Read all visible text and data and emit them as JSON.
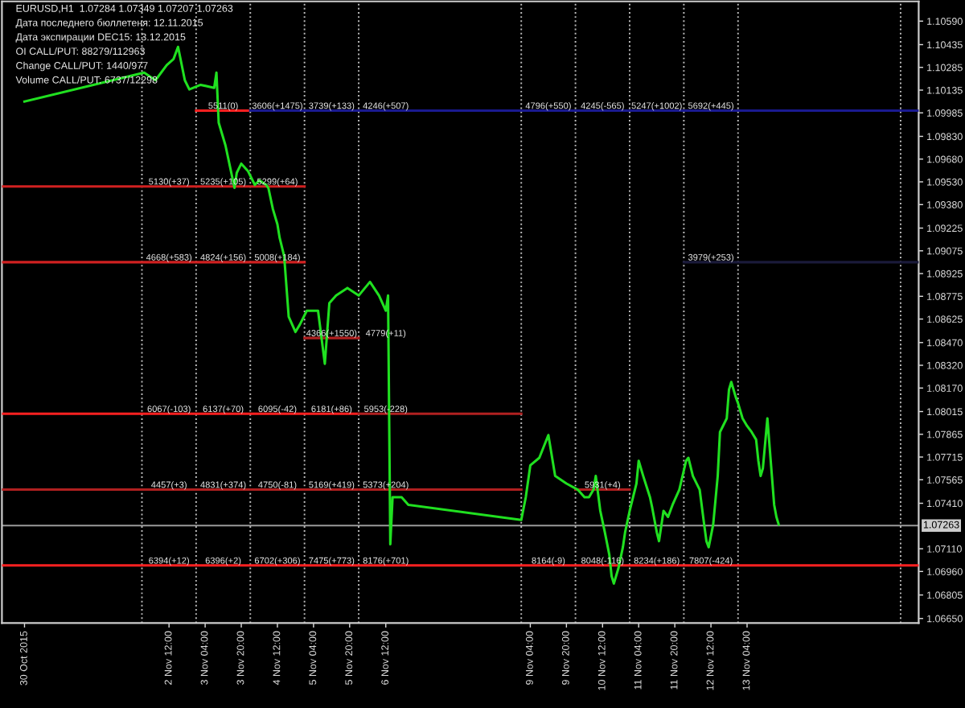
{
  "chart_data": {
    "type": "line",
    "annotations": [
      "EURUSD,H1  1.07284 1.07349 1.07207 1.07263",
      "Дата последнего бюллетеня: 12.11.2015",
      "Дата экспирации DEC15: 13.12.2015",
      "OI CALL/PUT: 88279/112963",
      "Change CALL/PUT: 1440/977",
      "Volume CALL/PUT: 6737/12298",
      {
        "text": "5511(0)",
        "x": "2015-11-03T12:00",
        "y": 1.1
      },
      {
        "text": "3606(+1475)",
        "x": "2015-11-04T12:00",
        "y": 1.1
      },
      {
        "text": "3739(+133)",
        "x": "2015-11-05T12:00",
        "y": 1.1
      },
      {
        "text": "4246(+507)",
        "x": "2015-11-06T12:00",
        "y": 1.1
      },
      {
        "text": "4796(+550)",
        "x": "2015-11-09T12:00",
        "y": 1.1
      },
      {
        "text": "4245(-565)",
        "x": "2015-11-10T12:00",
        "y": 1.1
      },
      {
        "text": "5247(+1002)",
        "x": "2015-11-11T12:00",
        "y": 1.1
      },
      {
        "text": "5692(+445)",
        "x": "2015-11-12T12:00",
        "y": 1.1
      },
      {
        "text": "5130(+37)",
        "x": "2015-11-02T12:00",
        "y": 1.095
      },
      {
        "text": "5235(+105)",
        "x": "2015-11-03T12:00",
        "y": 1.095
      },
      {
        "text": "5299(+64)",
        "x": "2015-11-04T12:00",
        "y": 1.095
      },
      {
        "text": "4668(+583)",
        "x": "2015-11-02T12:00",
        "y": 1.09
      },
      {
        "text": "4824(+156)",
        "x": "2015-11-03T12:00",
        "y": 1.09
      },
      {
        "text": "5008(+184)",
        "x": "2015-11-04T12:00",
        "y": 1.09
      },
      {
        "text": "3979(+253)",
        "x": "2015-11-12T12:00",
        "y": 1.09
      },
      {
        "text": "4366(+1550)",
        "x": "2015-11-05T12:00",
        "y": 1.085
      },
      {
        "text": "4779(+11)",
        "x": "2015-11-06T12:00",
        "y": 1.085
      },
      {
        "text": "6067(-103)",
        "x": "2015-11-02T12:00",
        "y": 1.08
      },
      {
        "text": "6137(+70)",
        "x": "2015-11-03T12:00",
        "y": 1.08
      },
      {
        "text": "6095(-42)",
        "x": "2015-11-04T12:00",
        "y": 1.08
      },
      {
        "text": "6181(+86)",
        "x": "2015-11-05T12:00",
        "y": 1.08
      },
      {
        "text": "5953(-228)",
        "x": "2015-11-06T12:00",
        "y": 1.08
      },
      {
        "text": "4457(+3)",
        "x": "2015-11-02T12:00",
        "y": 1.075
      },
      {
        "text": "4831(+374)",
        "x": "2015-11-03T12:00",
        "y": 1.075
      },
      {
        "text": "4750(-81)",
        "x": "2015-11-04T12:00",
        "y": 1.075
      },
      {
        "text": "5169(+419)",
        "x": "2015-11-05T12:00",
        "y": 1.075
      },
      {
        "text": "5373(+204)",
        "x": "2015-11-06T12:00",
        "y": 1.075
      },
      {
        "text": "5931(+4)",
        "x": "2015-11-10T12:00",
        "y": 1.075
      },
      {
        "text": "6394(+12)",
        "x": "2015-11-02T12:00",
        "y": 1.07
      },
      {
        "text": "6396(+2)",
        "x": "2015-11-03T12:00",
        "y": 1.07
      },
      {
        "text": "6702(+306)",
        "x": "2015-11-04T12:00",
        "y": 1.07
      },
      {
        "text": "7475(+773)",
        "x": "2015-11-05T12:00",
        "y": 1.07
      },
      {
        "text": "8176(+701)",
        "x": "2015-11-06T12:00",
        "y": 1.07
      },
      {
        "text": "8164(-9)",
        "x": "2015-11-09T12:00",
        "y": 1.07
      },
      {
        "text": "8048(-116)",
        "x": "2015-11-10T12:00",
        "y": 1.07
      },
      {
        "text": "8234(+186)",
        "x": "2015-11-11T12:00",
        "y": 1.07
      },
      {
        "text": "7807(-424)",
        "x": "2015-11-12T12:00",
        "y": 1.07
      }
    ],
    "series": [
      {
        "color": "#ff2020",
        "x": [
          "2015-11-03T00:00",
          "2015-11-04T00:00"
        ],
        "values": [
          1.1,
          1.1
        ]
      },
      {
        "color": "#1a1a90",
        "x": [
          "2015-11-04T00:00",
          "2015-11-16T08:00"
        ],
        "values": [
          1.1,
          1.1
        ]
      },
      {
        "color": "#d02020",
        "x": [
          "2015-10-30T10:00",
          "2015-11-05T00:00"
        ],
        "values": [
          1.095,
          1.095
        ]
      },
      {
        "color": "#d02020",
        "x": [
          "2015-10-30T10:00",
          "2015-11-05T00:00"
        ],
        "values": [
          1.09,
          1.09
        ]
      },
      {
        "color": "#1a1a3a",
        "x": [
          "2015-11-12T00:00",
          "2015-11-16T08:00"
        ],
        "values": [
          1.09,
          1.09
        ]
      },
      {
        "color": "#b02020",
        "x": [
          "2015-11-05T00:00",
          "2015-11-06T00:00"
        ],
        "values": [
          1.085,
          1.085
        ]
      },
      {
        "color": "#ff2020",
        "x": [
          "2015-10-30T10:00",
          "2015-11-06T00:00"
        ],
        "values": [
          1.08,
          1.08
        ]
      },
      {
        "color": "#b02020",
        "x": [
          "2015-11-06T00:00",
          "2015-11-09T00:00"
        ],
        "values": [
          1.08,
          1.08
        ]
      },
      {
        "color": "#b02020",
        "x": [
          "2015-10-30T10:00",
          "2015-11-09T00:00"
        ],
        "values": [
          1.075,
          1.075
        ]
      },
      {
        "color": "#b02020",
        "x": [
          "2015-11-10T00:00",
          "2015-11-11T00:00"
        ],
        "values": [
          1.075,
          1.075
        ]
      },
      {
        "color": "#ff2020",
        "x": [
          "2015-10-30T10:00",
          "2015-11-16T08:00"
        ],
        "values": [
          1.07,
          1.07
        ]
      },
      {
        "color": "#20e020",
        "x": [
          "2015-10-30T20:00",
          "2015-11-02T01:00",
          "2015-11-02T06:00",
          "2015-11-02T11:00",
          "2015-11-02T14:00",
          "2015-11-02T16:00",
          "2015-11-02T19:00",
          "2015-11-02T21:00",
          "2015-11-03T02:00",
          "2015-11-03T08:00",
          "2015-11-03T09:00",
          "2015-11-03T10:00",
          "2015-11-03T13:00",
          "2015-11-03T15:00",
          "2015-11-03T17:00",
          "2015-11-03T18:00",
          "2015-11-03T20:00",
          "2015-11-03T23:00",
          "2015-11-04T02:00",
          "2015-11-04T04:00",
          "2015-11-04T07:00",
          "2015-11-04T08:00",
          "2015-11-04T10:00",
          "2015-11-04T12:00",
          "2015-11-04T13:00",
          "2015-11-04T15:00",
          "2015-11-04T17:00",
          "2015-11-04T20:00",
          "2015-11-04T22:00",
          "2015-11-05T01:00",
          "2015-11-05T06:00",
          "2015-11-05T09:00",
          "2015-11-05T11:00",
          "2015-11-05T14:00",
          "2015-11-05T19:00",
          "2015-11-06T00:00",
          "2015-11-06T05:00",
          "2015-11-06T09:00",
          "2015-11-06T12:00",
          "2015-11-06T13:00",
          "2015-11-06T14:00",
          "2015-11-06T15:00",
          "2015-11-06T19:00",
          "2015-11-06T22:00",
          "2015-11-09T00:00",
          "2015-11-09T02:00",
          "2015-11-09T04:00",
          "2015-11-09T08:00",
          "2015-11-09T12:00",
          "2015-11-09T15:00",
          "2015-11-09T20:00",
          "2015-11-10T01:00",
          "2015-11-10T04:00",
          "2015-11-10T06:00",
          "2015-11-10T08:00",
          "2015-11-10T09:00",
          "2015-11-10T11:00",
          "2015-11-10T13:00",
          "2015-11-10T15:00",
          "2015-11-10T16:00",
          "2015-11-10T17:00",
          "2015-11-10T19:00",
          "2015-11-10T21:00",
          "2015-11-10T22:00",
          "2015-11-11T00:00",
          "2015-11-11T03:00",
          "2015-11-11T04:00",
          "2015-11-11T06:00",
          "2015-11-11T09:00",
          "2015-11-11T10:00",
          "2015-11-11T12:00",
          "2015-11-11T13:00",
          "2015-11-11T15:00",
          "2015-11-11T17:00",
          "2015-11-11T19:00",
          "2015-11-11T22:00",
          "2015-11-12T01:00",
          "2015-11-12T02:00",
          "2015-11-12T04:00",
          "2015-11-12T07:00",
          "2015-11-12T09:00",
          "2015-11-12T10:00",
          "2015-11-12T11:00",
          "2015-11-12T13:00",
          "2015-11-12T15:00",
          "2015-11-12T16:00",
          "2015-11-12T19:00",
          "2015-11-12T20:00",
          "2015-11-12T21:00",
          "2015-11-12T23:00",
          "2015-11-13T00:00",
          "2015-11-13T02:00",
          "2015-11-13T04:00",
          "2015-11-13T06:00",
          "2015-11-13T08:00",
          "2015-11-13T09:00",
          "2015-11-13T10:00",
          "2015-11-13T11:00",
          "2015-11-13T13:00",
          "2015-11-13T14:00",
          "2015-11-13T15:00",
          "2015-11-13T16:00",
          "2015-11-13T17:00",
          "2015-11-13T18:00"
        ],
        "values": [
          1.1006,
          1.1025,
          1.102,
          1.103,
          1.1034,
          1.1042,
          1.102,
          1.1014,
          1.1017,
          1.1015,
          1.1025,
          1.0992,
          1.0977,
          1.0963,
          1.0949,
          1.0959,
          1.0965,
          1.096,
          1.0951,
          1.0954,
          1.0951,
          1.0949,
          1.0935,
          1.0925,
          1.0916,
          1.0904,
          1.0864,
          1.0854,
          1.0859,
          1.0868,
          1.0868,
          1.0833,
          1.0873,
          1.0878,
          1.0883,
          1.0878,
          1.0887,
          1.0878,
          1.0868,
          1.0878,
          1.0714,
          1.0745,
          1.0745,
          1.074,
          1.073,
          1.0745,
          1.0766,
          1.0771,
          1.0786,
          1.0759,
          1.0754,
          1.075,
          1.0745,
          1.0745,
          1.075,
          1.0759,
          1.0736,
          1.0722,
          1.0707,
          1.0693,
          1.0688,
          1.0698,
          1.0712,
          1.0722,
          1.0736,
          1.0754,
          1.0769,
          1.0759,
          1.0745,
          1.0738,
          1.0722,
          1.0716,
          1.0736,
          1.0732,
          1.074,
          1.075,
          1.0769,
          1.0771,
          1.0759,
          1.075,
          1.0727,
          1.0716,
          1.0712,
          1.0727,
          1.0759,
          1.0788,
          1.0797,
          1.0816,
          1.0821,
          1.0811,
          1.0807,
          1.0797,
          1.0792,
          1.0788,
          1.0783,
          1.0769,
          1.0759,
          1.0764,
          1.0797,
          1.0778,
          1.0759,
          1.074,
          1.0732,
          1.0727
        ]
      }
    ],
    "xlim": [
      "2015-10-30T10:00",
      "2015-11-16T08:00"
    ],
    "xticks": [
      {
        "value": "2015-10-30T20:00",
        "label": "30 Oct 2015"
      },
      {
        "value": "2015-11-02T12:00",
        "label": "2 Nov 12:00"
      },
      {
        "value": "2015-11-03T04:00",
        "label": "3 Nov 04:00"
      },
      {
        "value": "2015-11-03T20:00",
        "label": "3 Nov 20:00"
      },
      {
        "value": "2015-11-04T12:00",
        "label": "4 Nov 12:00"
      },
      {
        "value": "2015-11-05T04:00",
        "label": "5 Nov 04:00"
      },
      {
        "value": "2015-11-05T20:00",
        "label": "5 Nov 20:00"
      },
      {
        "value": "2015-11-06T12:00",
        "label": "6 Nov 12:00"
      },
      {
        "value": "2015-11-09T04:00",
        "label": "9 Nov 04:00"
      },
      {
        "value": "2015-11-09T20:00",
        "label": "9 Nov 20:00"
      },
      {
        "value": "2015-11-10T12:00",
        "label": "10 Nov 12:00"
      },
      {
        "value": "2015-11-11T04:00",
        "label": "11 Nov 04:00"
      },
      {
        "value": "2015-11-11T20:00",
        "label": "11 Nov 20:00"
      },
      {
        "value": "2015-11-12T12:00",
        "label": "12 Nov 12:00"
      },
      {
        "value": "2015-11-13T04:00",
        "label": "13 Nov 04:00"
      }
    ],
    "ylim": [
      1.0662,
      1.1072
    ],
    "yticks": [
      {
        "value": 1.1059,
        "label": "1.10590"
      },
      {
        "value": 1.10435,
        "label": "1.10435"
      },
      {
        "value": 1.10285,
        "label": "1.10285"
      },
      {
        "value": 1.10135,
        "label": "1.10135"
      },
      {
        "value": 1.09985,
        "label": "1.09985"
      },
      {
        "value": 1.0983,
        "label": "1.09830"
      },
      {
        "value": 1.0968,
        "label": "1.09680"
      },
      {
        "value": 1.0953,
        "label": "1.09530"
      },
      {
        "value": 1.0938,
        "label": "1.09380"
      },
      {
        "value": 1.09225,
        "label": "1.09225"
      },
      {
        "value": 1.09075,
        "label": "1.09075"
      },
      {
        "value": 1.08925,
        "label": "1.08925"
      },
      {
        "value": 1.08775,
        "label": "1.08775"
      },
      {
        "value": 1.08625,
        "label": "1.08625"
      },
      {
        "value": 1.0847,
        "label": "1.08470"
      },
      {
        "value": 1.0832,
        "label": "1.08320"
      },
      {
        "value": 1.0817,
        "label": "1.08170"
      },
      {
        "value": 1.08015,
        "label": "1.08015"
      },
      {
        "value": 1.07865,
        "label": "1.07865"
      },
      {
        "value": 1.07715,
        "label": "1.07715"
      },
      {
        "value": 1.07565,
        "label": "1.07565"
      },
      {
        "value": 1.0741,
        "label": "1.07410"
      },
      {
        "value": 1.0711,
        "label": "1.07110"
      },
      {
        "value": 1.0696,
        "label": "1.06960"
      },
      {
        "value": 1.06805,
        "label": "1.06805"
      },
      {
        "value": 1.0665,
        "label": "1.06650"
      }
    ],
    "ref_lines": [
      {
        "axis": "y",
        "value": 1.07263,
        "label": "1.07263",
        "color": "#9a9a9a",
        "line_style": "solid"
      },
      {
        "axis": "x",
        "value": "2015-11-02T00:00",
        "color": "#bbbbbb",
        "line_style": "dotted"
      },
      {
        "axis": "x",
        "value": "2015-11-03T00:00",
        "color": "#bbbbbb",
        "line_style": "dotted"
      },
      {
        "axis": "x",
        "value": "2015-11-04T00:00",
        "color": "#bbbbbb",
        "line_style": "dotted"
      },
      {
        "axis": "x",
        "value": "2015-11-05T00:00",
        "color": "#bbbbbb",
        "line_style": "dotted"
      },
      {
        "axis": "x",
        "value": "2015-11-06T00:00",
        "color": "#bbbbbb",
        "line_style": "dotted"
      },
      {
        "axis": "x",
        "value": "2015-11-09T00:00",
        "color": "#bbbbbb",
        "line_style": "dotted"
      },
      {
        "axis": "x",
        "value": "2015-11-10T00:00",
        "color": "#bbbbbb",
        "line_style": "dotted"
      },
      {
        "axis": "x",
        "value": "2015-11-11T00:00",
        "color": "#bbbbbb",
        "line_style": "dotted"
      },
      {
        "axis": "x",
        "value": "2015-11-12T00:00",
        "color": "#bbbbbb",
        "line_style": "dotted"
      },
      {
        "axis": "x",
        "value": "2015-11-13T00:00",
        "color": "#bbbbbb",
        "line_style": "dotted"
      },
      {
        "axis": "x",
        "value": "2015-11-16T00:00",
        "color": "#bbbbbb",
        "line_style": "dotted"
      }
    ]
  }
}
